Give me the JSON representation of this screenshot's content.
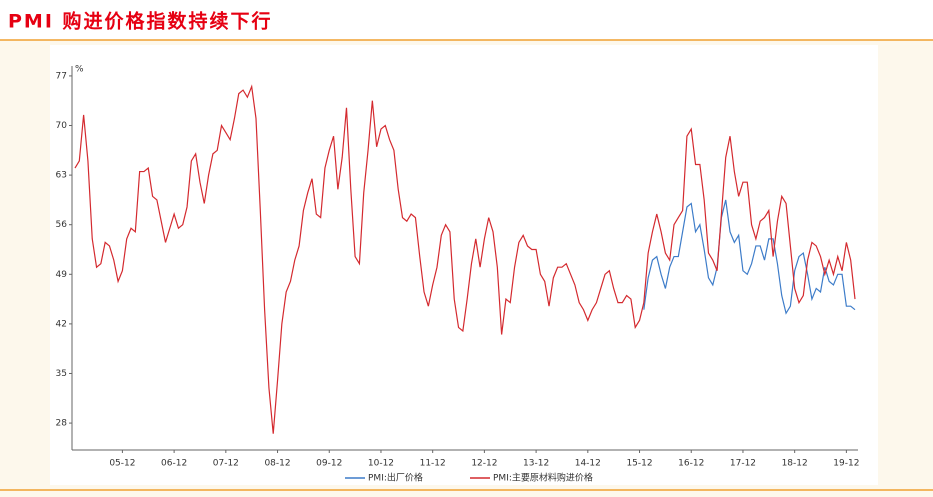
{
  "chart_data": {
    "type": "line",
    "title": "PMI 购进价格指数持续下行",
    "y_unit": "%",
    "x": [
      null,
      null,
      null,
      null,
      null,
      null,
      null,
      null,
      null,
      null,
      null,
      "05-12",
      null,
      null,
      null,
      null,
      null,
      null,
      null,
      null,
      null,
      null,
      null,
      "06-12",
      null,
      null,
      null,
      null,
      null,
      null,
      null,
      null,
      null,
      null,
      null,
      "07-12",
      null,
      null,
      null,
      null,
      null,
      null,
      null,
      null,
      null,
      null,
      null,
      "08-12",
      null,
      null,
      null,
      null,
      null,
      null,
      null,
      null,
      null,
      null,
      null,
      "09-12",
      null,
      null,
      null,
      null,
      null,
      null,
      null,
      null,
      null,
      null,
      null,
      "10-12",
      null,
      null,
      null,
      null,
      null,
      null,
      null,
      null,
      null,
      null,
      null,
      "11-12",
      null,
      null,
      null,
      null,
      null,
      null,
      null,
      null,
      null,
      null,
      null,
      "12-12",
      null,
      null,
      null,
      null,
      null,
      null,
      null,
      null,
      null,
      null,
      null,
      "13-12",
      null,
      null,
      null,
      null,
      null,
      null,
      null,
      null,
      null,
      null,
      null,
      "14-12",
      null,
      null,
      null,
      null,
      null,
      null,
      null,
      null,
      null,
      null,
      null,
      "15-12",
      null,
      null,
      null,
      null,
      null,
      null,
      null,
      null,
      null,
      null,
      null,
      "16-12",
      null,
      null,
      null,
      null,
      null,
      null,
      null,
      null,
      null,
      null,
      null,
      "17-12",
      null,
      null,
      null,
      null,
      null,
      null,
      null,
      null,
      null,
      null,
      null,
      "18-12",
      null,
      null,
      null,
      null,
      null,
      null,
      null,
      null,
      null,
      null,
      null,
      "19-12",
      null,
      null
    ],
    "series": [
      {
        "name": "PMI:出厂价格",
        "color": "#3d7cc9",
        "values": [
          null,
          null,
          null,
          null,
          null,
          null,
          null,
          null,
          null,
          null,
          null,
          null,
          null,
          null,
          null,
          null,
          null,
          null,
          null,
          null,
          null,
          null,
          null,
          null,
          null,
          null,
          null,
          null,
          null,
          null,
          null,
          null,
          null,
          null,
          null,
          null,
          null,
          null,
          null,
          null,
          null,
          null,
          null,
          null,
          null,
          null,
          null,
          null,
          null,
          null,
          null,
          null,
          null,
          null,
          null,
          null,
          null,
          null,
          null,
          null,
          null,
          null,
          null,
          null,
          null,
          null,
          null,
          null,
          null,
          null,
          null,
          null,
          null,
          null,
          null,
          null,
          null,
          null,
          null,
          null,
          null,
          null,
          null,
          null,
          null,
          null,
          null,
          null,
          null,
          null,
          null,
          null,
          null,
          null,
          null,
          null,
          null,
          null,
          null,
          null,
          null,
          null,
          null,
          null,
          null,
          null,
          null,
          null,
          null,
          null,
          null,
          null,
          null,
          null,
          null,
          null,
          null,
          null,
          null,
          null,
          null,
          null,
          null,
          null,
          null,
          null,
          null,
          null,
          null,
          null,
          null,
          null,
          44,
          48.5,
          51,
          51.5,
          49,
          47,
          50,
          51.5,
          51.5,
          55,
          58.5,
          59,
          55,
          56,
          52.5,
          48.5,
          47.5,
          50,
          57,
          59.5,
          55,
          53.5,
          54.5,
          49.5,
          49,
          50.5,
          53,
          53,
          51,
          54,
          54,
          50.5,
          46,
          43.5,
          44.5,
          49.5,
          51.5,
          52,
          49,
          45.5,
          47,
          46.5,
          50,
          48,
          47.5,
          49,
          49,
          44.5,
          44.5,
          44
        ]
      },
      {
        "name": "PMI:主要原材料购进价格",
        "color": "#d42a2f",
        "values": [
          64,
          65,
          71.5,
          65,
          54,
          50,
          50.5,
          53.5,
          53,
          51,
          48,
          49.5,
          54,
          55.5,
          55,
          63.5,
          63.5,
          64,
          60,
          59.5,
          56.5,
          53.5,
          55.5,
          57.5,
          55.5,
          56,
          58.5,
          65,
          66,
          62,
          59,
          63,
          66,
          66.5,
          70,
          69,
          68,
          71,
          74.5,
          75,
          74,
          75.5,
          71,
          58,
          44,
          33,
          26.5,
          34,
          42,
          46.5,
          48,
          51,
          53,
          58,
          60.5,
          62.5,
          57.5,
          57,
          64,
          66.5,
          68.5,
          61,
          65.5,
          72.5,
          61,
          51.5,
          50.5,
          60.5,
          66.5,
          73.5,
          67,
          69.5,
          70,
          68,
          66.5,
          61,
          57,
          56.5,
          57.5,
          57,
          51.5,
          46.5,
          44.5,
          47.5,
          50,
          54.5,
          56,
          55,
          45.5,
          41.5,
          41,
          45.5,
          50.5,
          54,
          50,
          54,
          57,
          55,
          50,
          40.5,
          45.5,
          45,
          50,
          53.5,
          54.5,
          53,
          52.5,
          52.5,
          49,
          48,
          44.5,
          48.5,
          50,
          50,
          50.5,
          49,
          47.5,
          45,
          44,
          42.5,
          44,
          45,
          47,
          49,
          49.5,
          47,
          45,
          45,
          46,
          45.5,
          41.5,
          42.5,
          45,
          52,
          55,
          57.5,
          55,
          52,
          51,
          56,
          57,
          58,
          68.5,
          69.5,
          64.5,
          64.5,
          59.5,
          52,
          51,
          49.5,
          57.5,
          65.5,
          68.5,
          63.5,
          60,
          62,
          62,
          56,
          54,
          56.5,
          57,
          58,
          51.5,
          56.5,
          60,
          59,
          53,
          47,
          45,
          46,
          51,
          53.5,
          53,
          51.5,
          49,
          51,
          49,
          51.5,
          49.5,
          53.5,
          51,
          45.5
        ]
      }
    ],
    "ylim": [
      24.2,
      78.4
    ],
    "yticks": [
      28,
      35,
      42,
      49,
      56,
      63,
      70,
      77
    ]
  }
}
